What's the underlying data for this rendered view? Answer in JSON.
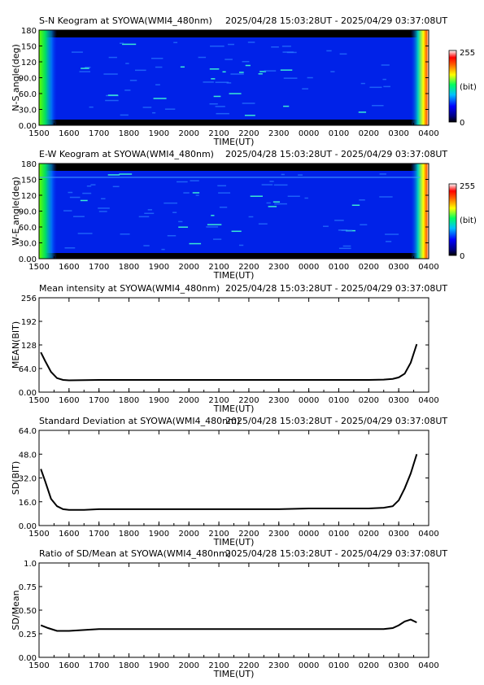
{
  "time_range": "2025/04/28 15:03:28UT - 2025/04/29 03:37:08UT",
  "time_ticks": [
    "1500",
    "1600",
    "1700",
    "1800",
    "1900",
    "2000",
    "2100",
    "2200",
    "2300",
    "0000",
    "0100",
    "0200",
    "0300",
    "0400"
  ],
  "colorbar": {
    "max_label": "255",
    "unit_label": "(bit)",
    "min_label": "0"
  },
  "chart_data": [
    {
      "type": "heatmap",
      "title": "S-N Keogram at SYOWA(WMI4_480nm)",
      "xlabel": "TIME(UT)",
      "ylabel": "N-S angle(deg)",
      "yticks": [
        "0.00",
        "30.0",
        "60.0",
        "90.0",
        "120",
        "150",
        "180"
      ],
      "ylim": [
        0,
        180
      ],
      "value_range": [
        0,
        255
      ]
    },
    {
      "type": "heatmap",
      "title": "E-W Keogram at SYOWA(WMI4_480nm)",
      "xlabel": "TIME(UT)",
      "ylabel": "W-E angle(deg)",
      "yticks": [
        "0.00",
        "30.0",
        "60.0",
        "90.0",
        "120",
        "150",
        "180"
      ],
      "ylim": [
        0,
        180
      ],
      "value_range": [
        0,
        255
      ]
    },
    {
      "type": "line",
      "title": "Mean intensity at SYOWA(WMI4_480nm)",
      "xlabel": "TIME(UT)",
      "ylabel": "MEAN(BIT)",
      "yticks": [
        "0.00",
        "64.0",
        "128",
        "192",
        "256"
      ],
      "ylim": [
        0,
        256
      ],
      "x": [
        15.06,
        15.2,
        15.4,
        15.6,
        15.8,
        16.0,
        17.0,
        18.0,
        19.0,
        20.0,
        21.0,
        22.0,
        23.0,
        24.0,
        25.0,
        26.0,
        26.5,
        26.8,
        27.0,
        27.2,
        27.4,
        27.6
      ],
      "values": [
        108,
        85,
        55,
        38,
        33,
        32,
        33,
        33,
        33,
        33,
        33,
        33,
        33,
        33,
        33,
        33,
        34,
        36,
        40,
        50,
        80,
        130
      ]
    },
    {
      "type": "line",
      "title": "Standard Deviation at SYOWA(WMI4_480nm)",
      "xlabel": "TIME(UT)",
      "ylabel": "SD(BIT)",
      "yticks": [
        "0.00",
        "16.0",
        "32.0",
        "48.0",
        "64.0"
      ],
      "ylim": [
        0,
        64
      ],
      "x": [
        15.06,
        15.2,
        15.4,
        15.6,
        15.8,
        16.0,
        16.5,
        17.0,
        18.0,
        19.0,
        20.0,
        21.0,
        22.0,
        23.0,
        24.0,
        25.0,
        26.0,
        26.5,
        26.8,
        27.0,
        27.2,
        27.4,
        27.6
      ],
      "values": [
        38,
        30,
        18,
        13,
        11,
        10.5,
        10.5,
        11,
        11,
        11,
        11,
        11,
        11,
        11,
        11.5,
        11.5,
        11.5,
        12,
        13,
        17,
        25,
        35,
        48
      ]
    },
    {
      "type": "line",
      "title": "Ratio of SD/Mean at SYOWA(WMI4_480nm)",
      "xlabel": "TIME(UT)",
      "ylabel": "SD/Mean",
      "yticks": [
        "0.00",
        "0.25",
        "0.50",
        "0.75",
        "1.0"
      ],
      "ylim": [
        0,
        1
      ],
      "x": [
        15.06,
        15.3,
        15.6,
        16.0,
        16.5,
        17.0,
        18.0,
        19.0,
        20.0,
        21.0,
        22.0,
        23.0,
        24.0,
        25.0,
        26.0,
        26.5,
        26.8,
        27.0,
        27.2,
        27.4,
        27.6
      ],
      "values": [
        0.34,
        0.31,
        0.28,
        0.28,
        0.29,
        0.3,
        0.3,
        0.3,
        0.3,
        0.3,
        0.3,
        0.3,
        0.3,
        0.3,
        0.3,
        0.3,
        0.31,
        0.34,
        0.38,
        0.4,
        0.37
      ]
    }
  ]
}
